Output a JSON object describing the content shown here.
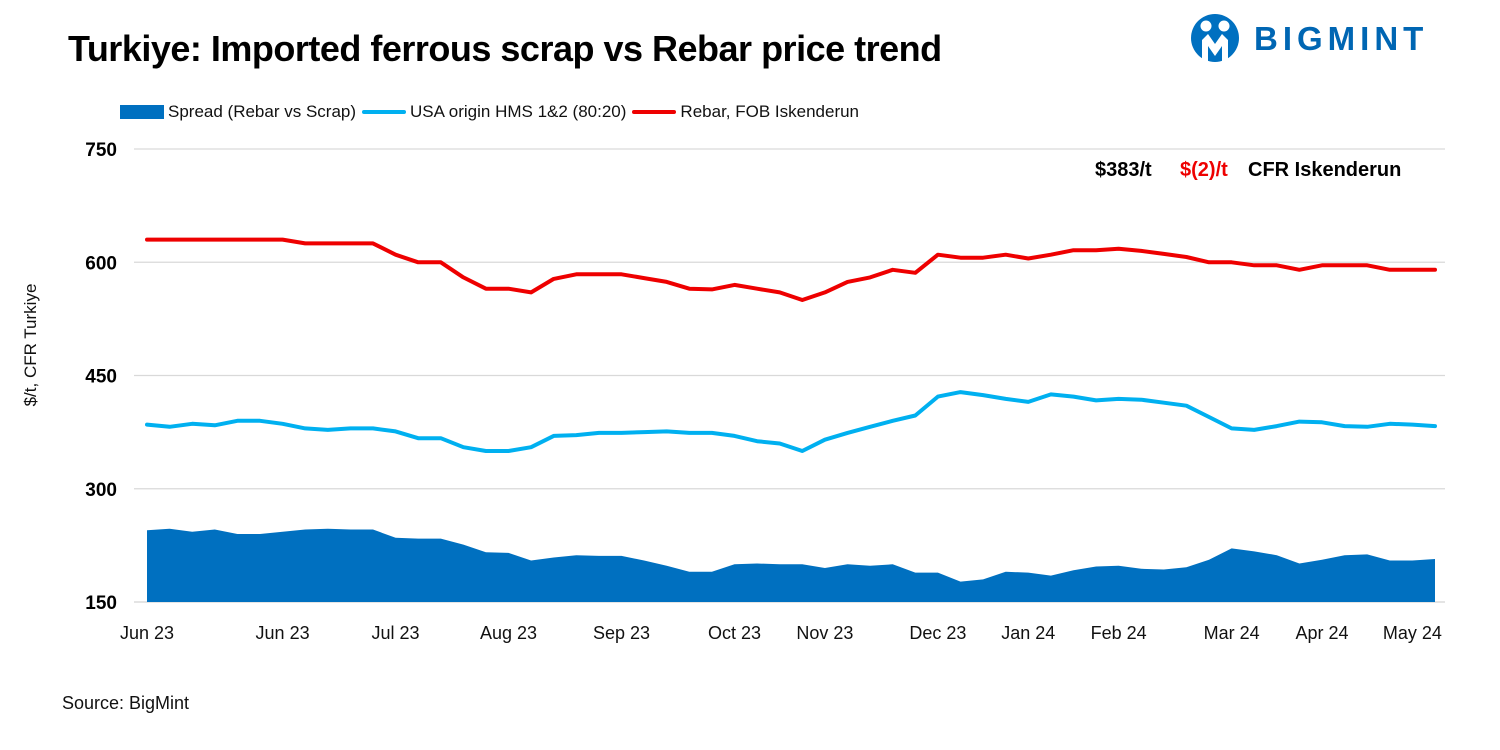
{
  "header": {
    "title": "Turkiye: Imported ferrous scrap vs Rebar price trend"
  },
  "logo": {
    "text": "BIGMINT",
    "icon": "bigmint-logo-icon"
  },
  "source": "Source: BigMint",
  "colors": {
    "spread": "#0070c0",
    "scrap": "#00b0f0",
    "rebar": "#ee0000",
    "annotation_change": "#ee0000"
  },
  "annotation": {
    "price": "$383/t",
    "change": "$(2)/t",
    "basis": "CFR Iskenderun"
  },
  "chart_data": {
    "type": "line",
    "title": "Turkiye: Imported ferrous scrap vs Rebar price trend",
    "ylabel": "$/t, CFR Turkiye",
    "ylim": [
      150,
      750
    ],
    "yticks": [
      150,
      300,
      450,
      600,
      750
    ],
    "grid": true,
    "legend_position": "top",
    "x_tick_labels": [
      {
        "label": "Jun 23",
        "index": 0
      },
      {
        "label": "Jun 23",
        "index": 6
      },
      {
        "label": "Jul 23",
        "index": 11
      },
      {
        "label": "Aug 23",
        "index": 16
      },
      {
        "label": "Sep 23",
        "index": 21
      },
      {
        "label": "Oct 23",
        "index": 26
      },
      {
        "label": "Nov 23",
        "index": 30
      },
      {
        "label": "Dec 23",
        "index": 35
      },
      {
        "label": "Jan 24",
        "index": 39
      },
      {
        "label": "Feb 24",
        "index": 43
      },
      {
        "label": "Mar 24",
        "index": 48
      },
      {
        "label": "Apr 24",
        "index": 52
      },
      {
        "label": "May 24",
        "index": 56
      }
    ],
    "series": [
      {
        "name": "Spread (Rebar vs Scrap)",
        "type": "area",
        "values": [
          245,
          247,
          243,
          246,
          240,
          240,
          243,
          246,
          247,
          246,
          246,
          235,
          234,
          234,
          226,
          216,
          215,
          205,
          209,
          212,
          211,
          211,
          205,
          198,
          190,
          190,
          200,
          201,
          200,
          200,
          195,
          200,
          198,
          200,
          189,
          189,
          177,
          180,
          190,
          189,
          185,
          192,
          197,
          198,
          194,
          193,
          196,
          206,
          221,
          217,
          212,
          201,
          206,
          212,
          213,
          205,
          205,
          207
        ]
      },
      {
        "name": "USA origin HMS 1&2 (80:20)",
        "type": "line",
        "values": [
          385,
          382,
          386,
          384,
          390,
          390,
          386,
          380,
          378,
          380,
          380,
          376,
          367,
          367,
          355,
          350,
          350,
          355,
          370,
          371,
          374,
          374,
          375,
          376,
          374,
          374,
          370,
          363,
          360,
          350,
          365,
          374,
          382,
          390,
          397,
          422,
          428,
          424,
          419,
          415,
          425,
          422,
          417,
          419,
          418,
          414,
          410,
          395,
          380,
          378,
          383,
          389,
          388,
          383,
          382,
          386,
          385,
          383
        ]
      },
      {
        "name": "Rebar, FOB Iskenderun",
        "type": "line",
        "values": [
          630,
          630,
          630,
          630,
          630,
          630,
          630,
          625,
          625,
          625,
          625,
          610,
          600,
          600,
          580,
          565,
          565,
          560,
          578,
          584,
          584,
          584,
          579,
          574,
          565,
          564,
          570,
          565,
          560,
          550,
          560,
          574,
          580,
          590,
          586,
          610,
          606,
          606,
          610,
          605,
          610,
          616,
          616,
          618,
          615,
          611,
          607,
          600,
          600,
          596,
          596,
          590,
          596,
          596,
          596,
          590,
          590,
          590
        ]
      }
    ]
  }
}
